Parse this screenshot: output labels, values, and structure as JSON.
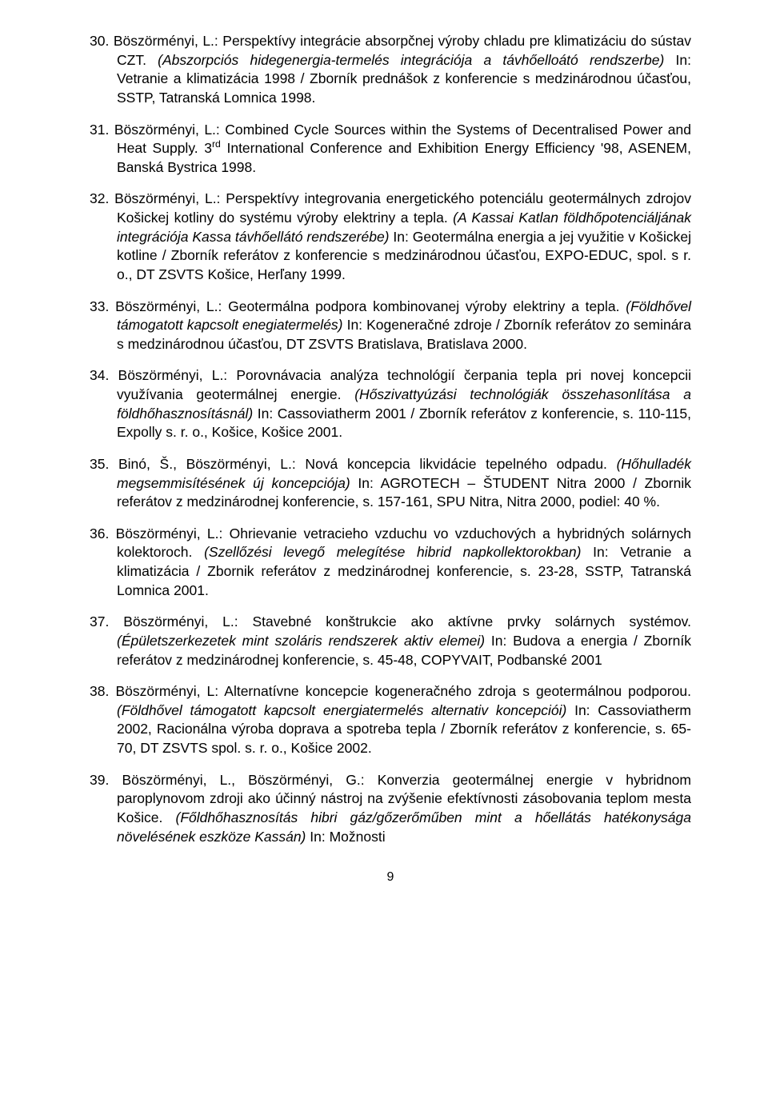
{
  "page_number": "9",
  "items": [
    {
      "num": "30.",
      "segments": [
        {
          "t": "Böszörményi, L.:  Perspektívy integrácie absorpčnej výroby chladu pre klimatizáciu do sústav CZT. ",
          "i": false
        },
        {
          "t": "(Abszorpciós hidegenergia-termelés integrációja a távhőelloátó rendszerbe) ",
          "i": true
        },
        {
          "t": "In: Vetranie a klimatizácia  1998 / Zborník prednášok z konferencie s medzinárodnou účasťou, SSTP, Tatranská Lomnica 1998.",
          "i": false
        }
      ]
    },
    {
      "num": "31.",
      "segments": [
        {
          "t": "Böszörményi, L.:  Combined Cycle Sources within the Systems of Decentralised Power and Heat Supply. 3",
          "i": false
        },
        {
          "t": "rd",
          "sup": true
        },
        {
          "t": " International Conference and Exhibition Energy Efficiency '98, ASENEM, Banská  Bystrica 1998.",
          "i": false
        }
      ]
    },
    {
      "num": "32.",
      "segments": [
        {
          "t": "Böszörményi, L.:  Perspektívy integrovania energetického potenciálu geotermálnych zdrojov Košickej kotliny do systému výroby elektriny a tepla. ",
          "i": false
        },
        {
          "t": "(A Kassai Katlan földhőpotenciáljának integrációja Kassa távhőellátó rendszerébe) ",
          "i": true
        },
        {
          "t": "In: Geotermálna energia a jej využitie v  Košickej kotline / Zborník referátov z konferencie s medzinárodnou účasťou, EXPO-EDUC, spol. s r. o., DT ZSVTS Košice,  Herľany 1999.",
          "i": false
        }
      ]
    },
    {
      "num": "33.",
      "segments": [
        {
          "t": "Böszörményi, L.: Geotermálna podpora kombinovanej výroby elektriny a tepla. ",
          "i": false
        },
        {
          "t": "(Földhővel támogatott kapcsolt enegiatermelés) ",
          "i": true
        },
        {
          "t": "In: Kogeneračné zdroje /  Zborník referátov zo seminára s medzinárodnou účasťou,  DT ZSVTS Bratislava, Bratislava 2000.",
          "i": false
        }
      ]
    },
    {
      "num": "34.",
      "segments": [
        {
          "t": "Böszörményi, L.:  Porovnávacia analýza technológií čerpania tepla pri novej koncepcii využívania geotermálnej energie. ",
          "i": false
        },
        {
          "t": "(Hőszivattyúzási technológiák összehasonlítása a földhőhasznosításnál) ",
          "i": true
        },
        {
          "t": "In: Cassoviatherm 2001 / Zborník referátov  z konferencie, s. 110-115, Expolly s. r. o., Košice,  Košice 2001.",
          "i": false
        }
      ]
    },
    {
      "num": "35.",
      "segments": [
        {
          "t": "Binó, Š., Böszörményi, L.:  Nová koncepcia likvidácie tepelného odpadu. ",
          "i": false
        },
        {
          "t": "(Hőhulladék megsemmisítésének új koncepciója)  ",
          "i": true
        },
        {
          "t": "In: AGROTECH – ŠTUDENT Nitra 2000 / Zbornik referátov z medzinárodnej  konferencie, s. 157-161,  SPU Nitra, Nitra 2000, podiel: 40 %.",
          "i": false
        }
      ]
    },
    {
      "num": "36.",
      "segments": [
        {
          "t": "Böszörményi, L.: Ohrievanie vetracieho vzduchu vo vzduchových a hybridných solárnych kolektoroch. ",
          "i": false
        },
        {
          "t": "(Szellőzési levegő melegítése hibrid napkollektorokban) ",
          "i": true
        },
        {
          "t": "In: Vetranie a klimatizácia / Zbornik referátov z medzinárodnej konferencie,  s. 23-28, SSTP, Tatranská Lomnica 2001.",
          "i": false
        }
      ]
    },
    {
      "num": "37.",
      "segments": [
        {
          "t": "Böszörményi, L.: Stavebné konštrukcie ako aktívne prvky solárnych systémov. ",
          "i": false
        },
        {
          "t": "(Épületszerkezetek mint szoláris rendszerek aktiv elemei)  ",
          "i": true
        },
        {
          "t": "In: Budova a energia / Zborník referátov z medzinárodnej konferencie, s. 45-48, COPYVAIT,  Podbanské 2001",
          "i": false
        }
      ]
    },
    {
      "num": "38.",
      "segments": [
        {
          "t": "Böszörményi, L: Alternatívne koncepcie kogeneračného zdroja s geotermálnou podporou. ",
          "i": false
        },
        {
          "t": "(Földhővel támogatott kapcsolt energiatermelés alternativ koncepciói) ",
          "i": true
        },
        {
          "t": "In: Cassoviatherm 2002, Racionálna výroba doprava a spotreba tepla /  Zborník referátov z konferencie, s. 65-70, DT ZSVTS spol. s. r. o., Košice 2002.",
          "i": false
        }
      ]
    },
    {
      "num": "39.",
      "justify": true,
      "segments": [
        {
          "t": "Böszörményi, L., Böszörményi, G.:  Konverzia geotermálnej energie v hybridnom paroplynovom zdroji ako účinný nástroj na zvýšenie efektívnosti zásobovania teplom mesta Košice. ",
          "i": false
        },
        {
          "t": "(Főldhőhasznosítás hibri gáz/gőzerőműben mint a hőellátás hatékonysága növelésének eszköze Kassán)  ",
          "i": true
        },
        {
          "t": "In: Možnosti",
          "i": false
        }
      ]
    }
  ]
}
